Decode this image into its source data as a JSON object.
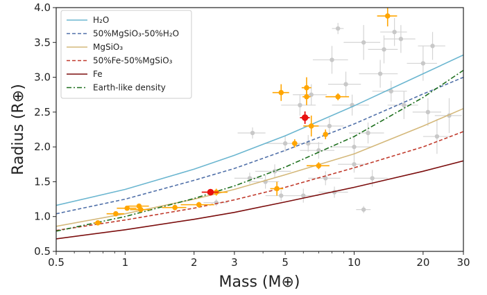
{
  "chart_data": {
    "type": "scatter",
    "xlabel": "Mass (M⊕)",
    "ylabel": "Radius (R⊕)",
    "x_scale": "log",
    "xlim": [
      0.5,
      30
    ],
    "ylim": [
      0.5,
      4.0
    ],
    "x_ticks": [
      0.5,
      1,
      2,
      3,
      5,
      10,
      20,
      30
    ],
    "x_tick_labels": [
      "0.5",
      "1",
      "2",
      "3",
      "5",
      "10",
      "20",
      "30"
    ],
    "y_ticks": [
      0.5,
      1.0,
      1.5,
      2.0,
      2.5,
      3.0,
      3.5,
      4.0
    ],
    "y_tick_labels": [
      "0.5",
      "1.0",
      "1.5",
      "2.0",
      "2.5",
      "3.0",
      "3.5",
      "4.0"
    ],
    "legend_position": "top-left",
    "grid": false,
    "lines": [
      {
        "name": "H₂O",
        "legend_text": "H2O",
        "color": "#6bb6d0",
        "dash": "solid",
        "x": [
          0.5,
          1,
          2,
          3,
          5,
          10,
          20,
          30
        ],
        "y": [
          1.16,
          1.39,
          1.68,
          1.88,
          2.16,
          2.59,
          3.05,
          3.32
        ]
      },
      {
        "name": "50%MgSiO₃-50%H₂O",
        "legend_text": "50%MgSiO3-50%H2O",
        "color": "#4f6fa8",
        "dash": "dashed",
        "x": [
          0.5,
          1,
          2,
          3,
          5,
          10,
          20,
          30
        ],
        "y": [
          1.04,
          1.25,
          1.52,
          1.69,
          1.95,
          2.33,
          2.76,
          3.0
        ]
      },
      {
        "name": "MgSiO₃",
        "legend_text": "MgSiO3",
        "color": "#d4b87a",
        "dash": "solid",
        "x": [
          0.5,
          1,
          2,
          3,
          5,
          10,
          20,
          30
        ],
        "y": [
          0.86,
          1.04,
          1.25,
          1.39,
          1.6,
          1.9,
          2.3,
          2.55
        ]
      },
      {
        "name": "50%Fe-50%MgSiO₃",
        "legend_text": "50%Fe-50%MgSiO3",
        "color": "#c0392b",
        "dash": "dashed",
        "x": [
          0.5,
          1,
          2,
          3,
          5,
          10,
          20,
          30
        ],
        "y": [
          0.8,
          0.95,
          1.12,
          1.24,
          1.42,
          1.7,
          2.0,
          2.22
        ]
      },
      {
        "name": "Fe",
        "legend_text": "Fe",
        "color": "#7b0d0d",
        "dash": "solid",
        "x": [
          0.5,
          1,
          2,
          3,
          5,
          10,
          20,
          30
        ],
        "y": [
          0.68,
          0.81,
          0.96,
          1.06,
          1.21,
          1.42,
          1.65,
          1.8
        ]
      },
      {
        "name": "Earth-like density",
        "legend_text": "Earth-like density",
        "color": "#1c6e1c",
        "dash": "dashdot",
        "x": [
          0.5,
          1,
          2,
          3,
          5,
          10,
          20,
          30
        ],
        "y": [
          0.79,
          1.0,
          1.26,
          1.44,
          1.71,
          2.15,
          2.71,
          3.1
        ]
      }
    ],
    "background_points": [
      {
        "x": 3.6,
        "y": 2.2,
        "xerr": 0.5,
        "yerr": 0.08
      },
      {
        "x": 4.1,
        "y": 1.5,
        "xerr": 0.6,
        "yerr": 0.1
      },
      {
        "x": 4.5,
        "y": 1.65,
        "xerr": 0.8,
        "yerr": 0.1
      },
      {
        "x": 5.0,
        "y": 2.05,
        "xerr": 0.9,
        "yerr": 0.12
      },
      {
        "x": 5.8,
        "y": 2.6,
        "xerr": 1.0,
        "yerr": 0.15
      },
      {
        "x": 6.0,
        "y": 1.3,
        "xerr": 1.0,
        "yerr": 0.1
      },
      {
        "x": 6.5,
        "y": 2.75,
        "xerr": 1.1,
        "yerr": 0.15
      },
      {
        "x": 7.0,
        "y": 1.95,
        "xerr": 1.2,
        "yerr": 0.12
      },
      {
        "x": 7.5,
        "y": 1.55,
        "xerr": 1.2,
        "yerr": 0.1
      },
      {
        "x": 8.0,
        "y": 3.25,
        "xerr": 1.4,
        "yerr": 0.2
      },
      {
        "x": 8.5,
        "y": 3.7,
        "xerr": 0.5,
        "yerr": 0.08
      },
      {
        "x": 9.2,
        "y": 2.9,
        "xerr": 1.5,
        "yerr": 0.18
      },
      {
        "x": 9.8,
        "y": 2.6,
        "xerr": 1.8,
        "yerr": 0.15
      },
      {
        "x": 10.0,
        "y": 2.0,
        "xerr": 2.0,
        "yerr": 0.15
      },
      {
        "x": 10.0,
        "y": 1.75,
        "xerr": 1.5,
        "yerr": 0.12
      },
      {
        "x": 11.0,
        "y": 1.1,
        "xerr": 0.8,
        "yerr": 0.05
      },
      {
        "x": 11.0,
        "y": 3.5,
        "xerr": 2.0,
        "yerr": 0.25
      },
      {
        "x": 11.5,
        "y": 2.2,
        "xerr": 2.0,
        "yerr": 0.15
      },
      {
        "x": 12.0,
        "y": 1.55,
        "xerr": 2.0,
        "yerr": 0.12
      },
      {
        "x": 13.0,
        "y": 3.05,
        "xerr": 2.5,
        "yerr": 0.2
      },
      {
        "x": 13.5,
        "y": 3.4,
        "xerr": 2.0,
        "yerr": 0.2
      },
      {
        "x": 14.5,
        "y": 2.8,
        "xerr": 2.5,
        "yerr": 0.15
      },
      {
        "x": 15.0,
        "y": 3.65,
        "xerr": 2.0,
        "yerr": 0.2
      },
      {
        "x": 16.0,
        "y": 3.55,
        "xerr": 2.5,
        "yerr": 0.2
      },
      {
        "x": 16.5,
        "y": 2.6,
        "xerr": 2.5,
        "yerr": 0.2
      },
      {
        "x": 20.0,
        "y": 3.2,
        "xerr": 3.0,
        "yerr": 0.25
      },
      {
        "x": 21.0,
        "y": 2.5,
        "xerr": 3.0,
        "yerr": 0.2
      },
      {
        "x": 22.0,
        "y": 3.45,
        "xerr": 3.0,
        "yerr": 0.2
      },
      {
        "x": 23.0,
        "y": 2.15,
        "xerr": 3.0,
        "yerr": 0.25
      },
      {
        "x": 26.0,
        "y": 2.45,
        "xerr": 3.5,
        "yerr": 0.25
      },
      {
        "x": 2.5,
        "y": 1.2,
        "xerr": 0.3,
        "yerr": 0.05
      },
      {
        "x": 3.5,
        "y": 1.55,
        "xerr": 0.5,
        "yerr": 0.08
      },
      {
        "x": 4.8,
        "y": 1.3,
        "xerr": 0.7,
        "yerr": 0.08
      },
      {
        "x": 8.2,
        "y": 1.35,
        "xerr": 1.2,
        "yerr": 0.08
      },
      {
        "x": 6.3,
        "y": 2.05,
        "xerr": 1.0,
        "yerr": 0.12
      },
      {
        "x": 7.8,
        "y": 2.3,
        "xerr": 1.2,
        "yerr": 0.12
      }
    ],
    "highlight_points": [
      {
        "x": 0.76,
        "y": 0.91,
        "xerr": 0.03,
        "yerr": 0.02
      },
      {
        "x": 0.91,
        "y": 1.04,
        "xerr": 0.08,
        "yerr": 0.03
      },
      {
        "x": 1.02,
        "y": 1.12,
        "xerr": 0.1,
        "yerr": 0.03
      },
      {
        "x": 1.15,
        "y": 1.15,
        "xerr": 0.12,
        "yerr": 0.03
      },
      {
        "x": 1.17,
        "y": 1.1,
        "xerr": 0.12,
        "yerr": 0.03
      },
      {
        "x": 1.65,
        "y": 1.13,
        "xerr": 0.2,
        "yerr": 0.04
      },
      {
        "x": 2.1,
        "y": 1.17,
        "xerr": 0.35,
        "yerr": 0.04
      },
      {
        "x": 2.5,
        "y": 1.35,
        "xerr": 0.3,
        "yerr": 0.05
      },
      {
        "x": 4.6,
        "y": 1.4,
        "xerr": 0.3,
        "yerr": 0.1
      },
      {
        "x": 4.8,
        "y": 2.78,
        "xerr": 0.4,
        "yerr": 0.12
      },
      {
        "x": 5.5,
        "y": 2.05,
        "xerr": 0.15,
        "yerr": 0.06
      },
      {
        "x": 6.2,
        "y": 2.85,
        "xerr": 0.3,
        "yerr": 0.15
      },
      {
        "x": 6.2,
        "y": 2.72,
        "xerr": 0.25,
        "yerr": 0.12
      },
      {
        "x": 6.5,
        "y": 2.3,
        "xerr": 0.5,
        "yerr": 0.15
      },
      {
        "x": 7.0,
        "y": 1.73,
        "xerr": 0.8,
        "yerr": 0.05
      },
      {
        "x": 7.5,
        "y": 2.18,
        "xerr": 0.15,
        "yerr": 0.07
      },
      {
        "x": 8.5,
        "y": 2.72,
        "xerr": 1.0,
        "yerr": 0.05
      },
      {
        "x": 14.0,
        "y": 3.88,
        "xerr": 1.4,
        "yerr": 0.15
      }
    ],
    "highlight_color": "#ffa500",
    "special_points": [
      {
        "x": 2.36,
        "y": 1.35,
        "xerr": 0.2,
        "yerr": 0.04
      },
      {
        "x": 6.1,
        "y": 2.42,
        "xerr": 0.3,
        "yerr": 0.09
      }
    ],
    "special_color": "#e81010"
  }
}
